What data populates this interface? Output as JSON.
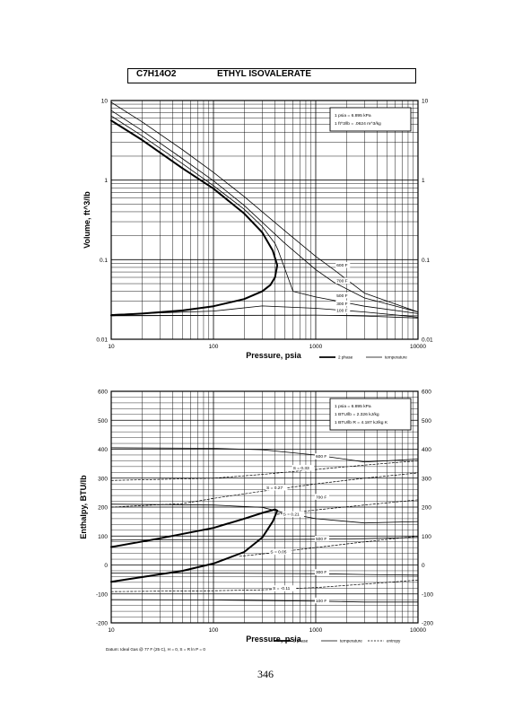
{
  "header": {
    "formula": "C7H14O2",
    "compound": "ETHYL ISOVALERATE"
  },
  "page_number": "346",
  "chart_data": [
    {
      "type": "line",
      "x_scale": "log",
      "y_scale": "log",
      "xlabel": "Pressure,  psia",
      "ylabel": "Volume, ft^3/lb",
      "xlim": [
        10,
        10000
      ],
      "ylim": [
        0.01,
        10
      ],
      "x_ticks": [
        "10",
        "100",
        "1000",
        "10000"
      ],
      "y_ticks": [
        "10",
        "1",
        "0.1",
        "0.01"
      ],
      "legend_box": [
        "1 psia  =  6.895 kPa",
        "1 ft^3/lb  =  .0624 m^3/kg"
      ],
      "legend_lines": [
        "2 phase",
        "temperature"
      ],
      "series": [
        {
          "name": "2 phase",
          "style": "thick",
          "points": [
            [
              10,
              5.6
            ],
            [
              20,
              3.2
            ],
            [
              50,
              1.4
            ],
            [
              100,
              0.78
            ],
            [
              200,
              0.38
            ],
            [
              300,
              0.22
            ],
            [
              380,
              0.13
            ],
            [
              420,
              0.085
            ],
            [
              400,
              0.06
            ],
            [
              360,
              0.048
            ],
            [
              300,
              0.04
            ],
            [
              200,
              0.032
            ],
            [
              100,
              0.026
            ],
            [
              50,
              0.023
            ],
            [
              20,
              0.021
            ],
            [
              10,
              0.02
            ]
          ]
        },
        {
          "name": "600 F",
          "style": "thin",
          "points": [
            [
              10,
              9.5
            ],
            [
              20,
              5.4
            ],
            [
              50,
              2.4
            ],
            [
              100,
              1.25
            ],
            [
              200,
              0.62
            ],
            [
              500,
              0.23
            ],
            [
              1000,
              0.11
            ],
            [
              1500,
              0.075
            ],
            [
              3000,
              0.038
            ],
            [
              10000,
              0.022
            ]
          ]
        },
        {
          "name": "700 F",
          "style": "thin",
          "points": [
            [
              10,
              7.5
            ],
            [
              20,
              4.2
            ],
            [
              50,
              1.85
            ],
            [
              100,
              0.98
            ],
            [
              200,
              0.48
            ],
            [
              500,
              0.16
            ],
            [
              1000,
              0.075
            ],
            [
              1500,
              0.052
            ],
            [
              3000,
              0.033
            ],
            [
              10000,
              0.022
            ]
          ]
        },
        {
          "name": "500 F",
          "style": "thin",
          "points": [
            [
              10,
              6.4
            ],
            [
              20,
              3.6
            ],
            [
              50,
              1.6
            ],
            [
              100,
              0.85
            ],
            [
              200,
              0.43
            ],
            [
              300,
              0.26
            ],
            [
              350,
              0.2
            ],
            [
              400,
              0.16
            ],
            [
              430,
              0.13
            ],
            [
              600,
              0.04
            ],
            [
              1000,
              0.034
            ],
            [
              3000,
              0.026
            ],
            [
              10000,
              0.021
            ]
          ]
        },
        {
          "name": "300 F",
          "style": "thin",
          "points": [
            [
              10,
              0.0205
            ],
            [
              100,
              0.0226
            ],
            [
              300,
              0.0262
            ],
            [
              1000,
              0.0245
            ],
            [
              3000,
              0.022
            ],
            [
              10000,
              0.019
            ]
          ]
        },
        {
          "name": "100 F",
          "style": "thin",
          "points": [
            [
              10,
              0.0197
            ],
            [
              100,
              0.0199
            ],
            [
              1000,
              0.0201
            ],
            [
              3000,
              0.0196
            ],
            [
              10000,
              0.0185
            ]
          ]
        }
      ],
      "curve_labels": [
        {
          "text": "600 F",
          "x": 1600,
          "y": 0.082
        },
        {
          "text": "700 F",
          "x": 1600,
          "y": 0.052
        },
        {
          "text": "500 F",
          "x": 1600,
          "y": 0.034
        },
        {
          "text": "300 F",
          "x": 1600,
          "y": 0.027
        },
        {
          "text": "100 F",
          "x": 1600,
          "y": 0.022
        }
      ]
    },
    {
      "type": "line",
      "x_scale": "log",
      "y_scale": "linear",
      "xlabel": "Pressure,  psia",
      "ylabel": "Enthalpy, BTU/lb",
      "xlim": [
        10,
        10000
      ],
      "ylim": [
        -200,
        600
      ],
      "x_ticks": [
        "10",
        "100",
        "1000",
        "10000"
      ],
      "y_ticks": [
        "600",
        "500",
        "400",
        "300",
        "200",
        "100",
        "0",
        "-100",
        "-200"
      ],
      "legend_box": [
        "1 psia  =  6.895 kPa",
        "1 BTU/lb  =  2.326 kJ/kg",
        "1 BTU/lb R  =  4.187 kJ/kg K"
      ],
      "legend_lines": [
        "2 phase",
        "temperature",
        "entropy"
      ],
      "footnote": "Datum: Ideal Gas @ 77 F (25 C),  H = 0,  S = R ln P = 0",
      "series": [
        {
          "name": "2 phase",
          "style": "thick",
          "points": [
            [
              10,
              62
            ],
            [
              30,
              92
            ],
            [
              100,
              128
            ],
            [
              200,
              160
            ],
            [
              300,
              180
            ],
            [
              400,
              192
            ],
            [
              420,
              188
            ],
            [
              380,
              150
            ],
            [
              300,
              95
            ],
            [
              200,
              45
            ],
            [
              100,
              5
            ],
            [
              50,
              -20
            ],
            [
              20,
              -42
            ],
            [
              10,
              -58
            ]
          ]
        },
        {
          "name": "600 F",
          "style": "thin",
          "points": [
            [
              10,
              405
            ],
            [
              100,
              403
            ],
            [
              300,
              398
            ],
            [
              1000,
              380
            ],
            [
              3000,
              356
            ],
            [
              10000,
              366
            ]
          ]
        },
        {
          "name": "700 F",
          "style": "thin",
          "points": [
            [
              10,
              210
            ],
            [
              100,
              207
            ],
            [
              300,
              199
            ],
            [
              500,
              180
            ],
            [
              1000,
              160
            ],
            [
              3000,
              145
            ],
            [
              10000,
              150
            ]
          ]
        },
        {
          "name": "500 F",
          "style": "thin",
          "points": [
            [
              10,
              86
            ],
            [
              100,
              88
            ],
            [
              300,
              88
            ],
            [
              1000,
              89
            ],
            [
              3000,
              91
            ],
            [
              10000,
              95
            ]
          ]
        },
        {
          "name": "300 F",
          "style": "thin",
          "points": [
            [
              10,
              -28
            ],
            [
              100,
              -28
            ],
            [
              1000,
              -30
            ],
            [
              3000,
              -33
            ],
            [
              10000,
              -35
            ]
          ]
        },
        {
          "name": "100 F",
          "style": "thin",
          "points": [
            [
              10,
              -120
            ],
            [
              100,
              -121
            ],
            [
              1000,
              -125
            ],
            [
              3000,
              -128
            ],
            [
              10000,
              -128
            ]
          ]
        },
        {
          "name": "S = 0.33",
          "style": "dashed",
          "points": [
            [
              10,
              292
            ],
            [
              100,
              300
            ],
            [
              300,
              313
            ],
            [
              1000,
              330
            ],
            [
              3000,
              345
            ],
            [
              10000,
              360
            ]
          ]
        },
        {
          "name": "S = 0.27",
          "style": "dashed",
          "points": [
            [
              10,
              200
            ],
            [
              50,
              212
            ],
            [
              100,
              230
            ],
            [
              300,
              255
            ],
            [
              1000,
              280
            ],
            [
              3000,
              300
            ],
            [
              10000,
              318
            ]
          ]
        },
        {
          "name": "S = 0.21",
          "style": "dashed",
          "points": [
            [
              420,
              175
            ],
            [
              1000,
              190
            ],
            [
              3000,
              207
            ],
            [
              10000,
              225
            ]
          ]
        },
        {
          "name": "S = 0.05",
          "style": "dashed",
          "points": [
            [
              180,
              30
            ],
            [
              300,
              38
            ],
            [
              1000,
              60
            ],
            [
              3000,
              80
            ],
            [
              10000,
              100
            ]
          ]
        },
        {
          "name": "S = -0.11",
          "style": "dashed",
          "points": [
            [
              10,
              -92
            ],
            [
              100,
              -89
            ],
            [
              300,
              -86
            ],
            [
              1000,
              -78
            ],
            [
              3000,
              -66
            ],
            [
              10000,
              -52
            ]
          ]
        }
      ],
      "curve_labels": [
        {
          "text": "600 F",
          "x": 1000,
          "y": 370
        },
        {
          "text": "700 F",
          "x": 1000,
          "y": 230
        },
        {
          "text": "500 F",
          "x": 1000,
          "y": 85
        },
        {
          "text": "300 F",
          "x": 1000,
          "y": -30
        },
        {
          "text": "100 F",
          "x": 1000,
          "y": -128
        },
        {
          "text": "S = 0.33",
          "x": 600,
          "y": 330
        },
        {
          "text": "S = 0.27",
          "x": 330,
          "y": 262
        },
        {
          "text": "S = 0.21",
          "x": 480,
          "y": 170
        },
        {
          "text": "S = 0.05",
          "x": 360,
          "y": 40
        },
        {
          "text": "S = -0.11",
          "x": 380,
          "y": -86
        }
      ]
    }
  ]
}
